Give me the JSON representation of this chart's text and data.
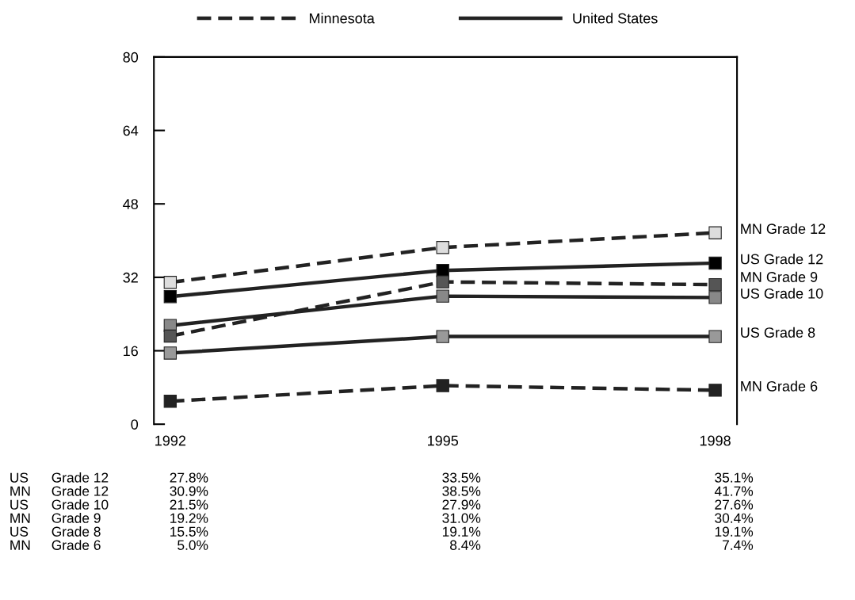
{
  "chart_data": {
    "type": "line",
    "categories": [
      "1992",
      "1995",
      "1998"
    ],
    "ylim": [
      0,
      80
    ],
    "yticks": [
      0,
      16,
      32,
      48,
      64,
      80
    ],
    "grid": false,
    "marker": "square",
    "legend": "right",
    "annotations": [
      "Minnesota",
      "United States"
    ],
    "series": [
      {
        "name": "US Grade 12",
        "color": "#000000",
        "line_style": "solid",
        "values": [
          27.8,
          33.5,
          35.1
        ],
        "value_labels": [
          "27.8%",
          "33.5%",
          "35.1%"
        ]
      },
      {
        "name": "MN Grade 12",
        "color": "#dddddd",
        "line_style": "dashed",
        "values": [
          30.9,
          38.5,
          41.7
        ],
        "value_labels": [
          "30.9%",
          "38.5%",
          "41.7%"
        ]
      },
      {
        "name": "US Grade 10",
        "color": "#888888",
        "line_style": "solid",
        "values": [
          21.5,
          27.9,
          27.6
        ],
        "value_labels": [
          "21.5%",
          "27.9%",
          "27.6%"
        ]
      },
      {
        "name": "MN Grade 9",
        "color": "#555555",
        "line_style": "dashed",
        "values": [
          19.2,
          31.0,
          30.4
        ],
        "value_labels": [
          "19.2%",
          "31.0%",
          "30.4%"
        ]
      },
      {
        "name": "US Grade 8",
        "color": "#999999",
        "line_style": "solid",
        "values": [
          15.5,
          19.1,
          19.1
        ],
        "value_labels": [
          "15.5%",
          "19.1%",
          "19.1%"
        ]
      },
      {
        "name": "MN Grade 6",
        "color": "#222222",
        "line_style": "dashed",
        "values": [
          5.0,
          8.4,
          7.4
        ],
        "value_labels": [
          "5.0%",
          "8.4%",
          "7.4%"
        ]
      }
    ]
  }
}
